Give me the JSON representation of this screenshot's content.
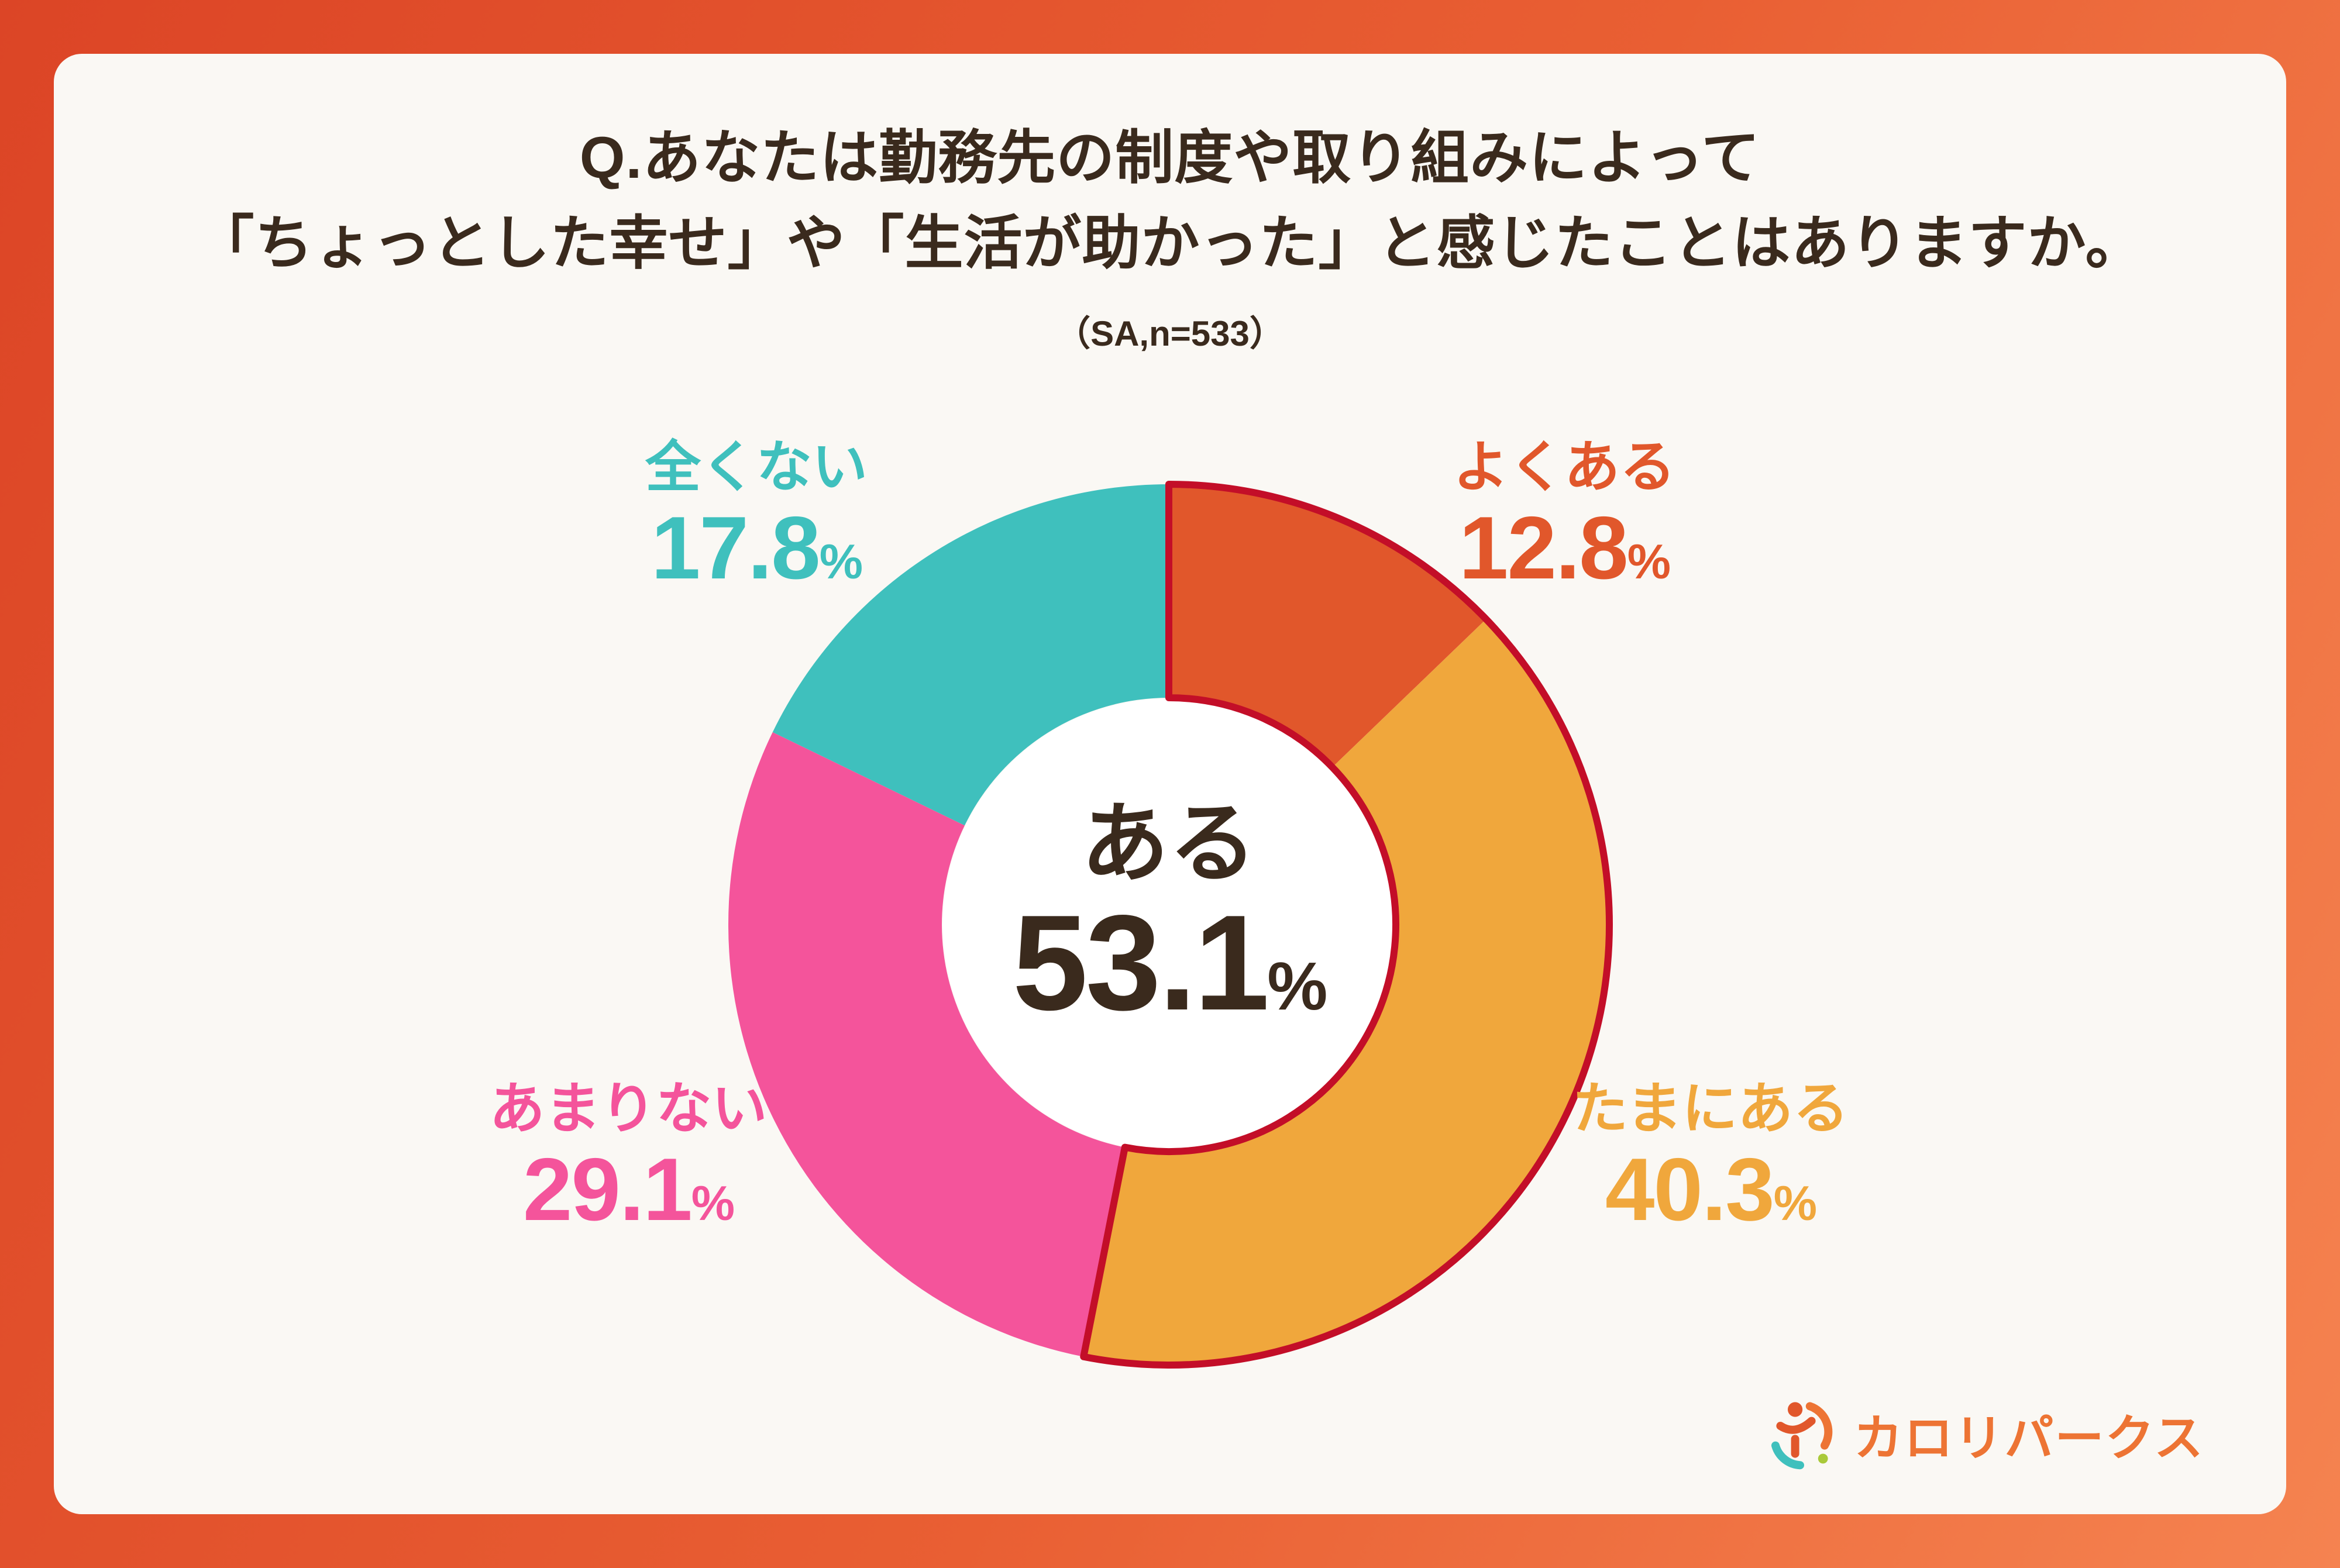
{
  "title": {
    "line1": "Q.あなたは勤務先の制度や取り組みによって",
    "line2": "「ちょっとした幸せ」や「生活が助かった」と感じたことはありますか。",
    "note": "（SA,n=533）"
  },
  "labels": {
    "percent": "%"
  },
  "logo": {
    "text": "カロリパークス",
    "color": "#ed7434"
  },
  "colors": {
    "frame_gradient_start": "#dc4526",
    "frame_gradient_end": "#f58350",
    "panel_bg": "#faf8f4",
    "title_text": "#3a2a1d",
    "center_text": "#3a2a1d",
    "donut_hole": "#ffffff"
  },
  "chart_data": {
    "type": "pie",
    "subtype": "donut",
    "title": "Q.あなたは勤務先の制度や取り組みによって「ちょっとした幸せ」や「生活が助かった」と感じたことはありますか。",
    "note": "(SA,n=533)",
    "sample_size": 533,
    "start_angle_deg": 0,
    "direction": "clockwise",
    "unit": "%",
    "segments": [
      {
        "label": "よくある",
        "value": 12.8,
        "color": "#e1572b"
      },
      {
        "label": "たまにある",
        "value": 40.3,
        "color": "#f0a73c"
      },
      {
        "label": "あまりない",
        "value": 29.1,
        "color": "#f4549b"
      },
      {
        "label": "全くない",
        "value": 17.8,
        "color": "#3fc0bd"
      }
    ],
    "highlight_group": {
      "label": "ある",
      "value": 53.1,
      "members": [
        "よくある",
        "たまにある"
      ],
      "outline_color": "#c30e28"
    },
    "legend_position": "around-chart"
  }
}
